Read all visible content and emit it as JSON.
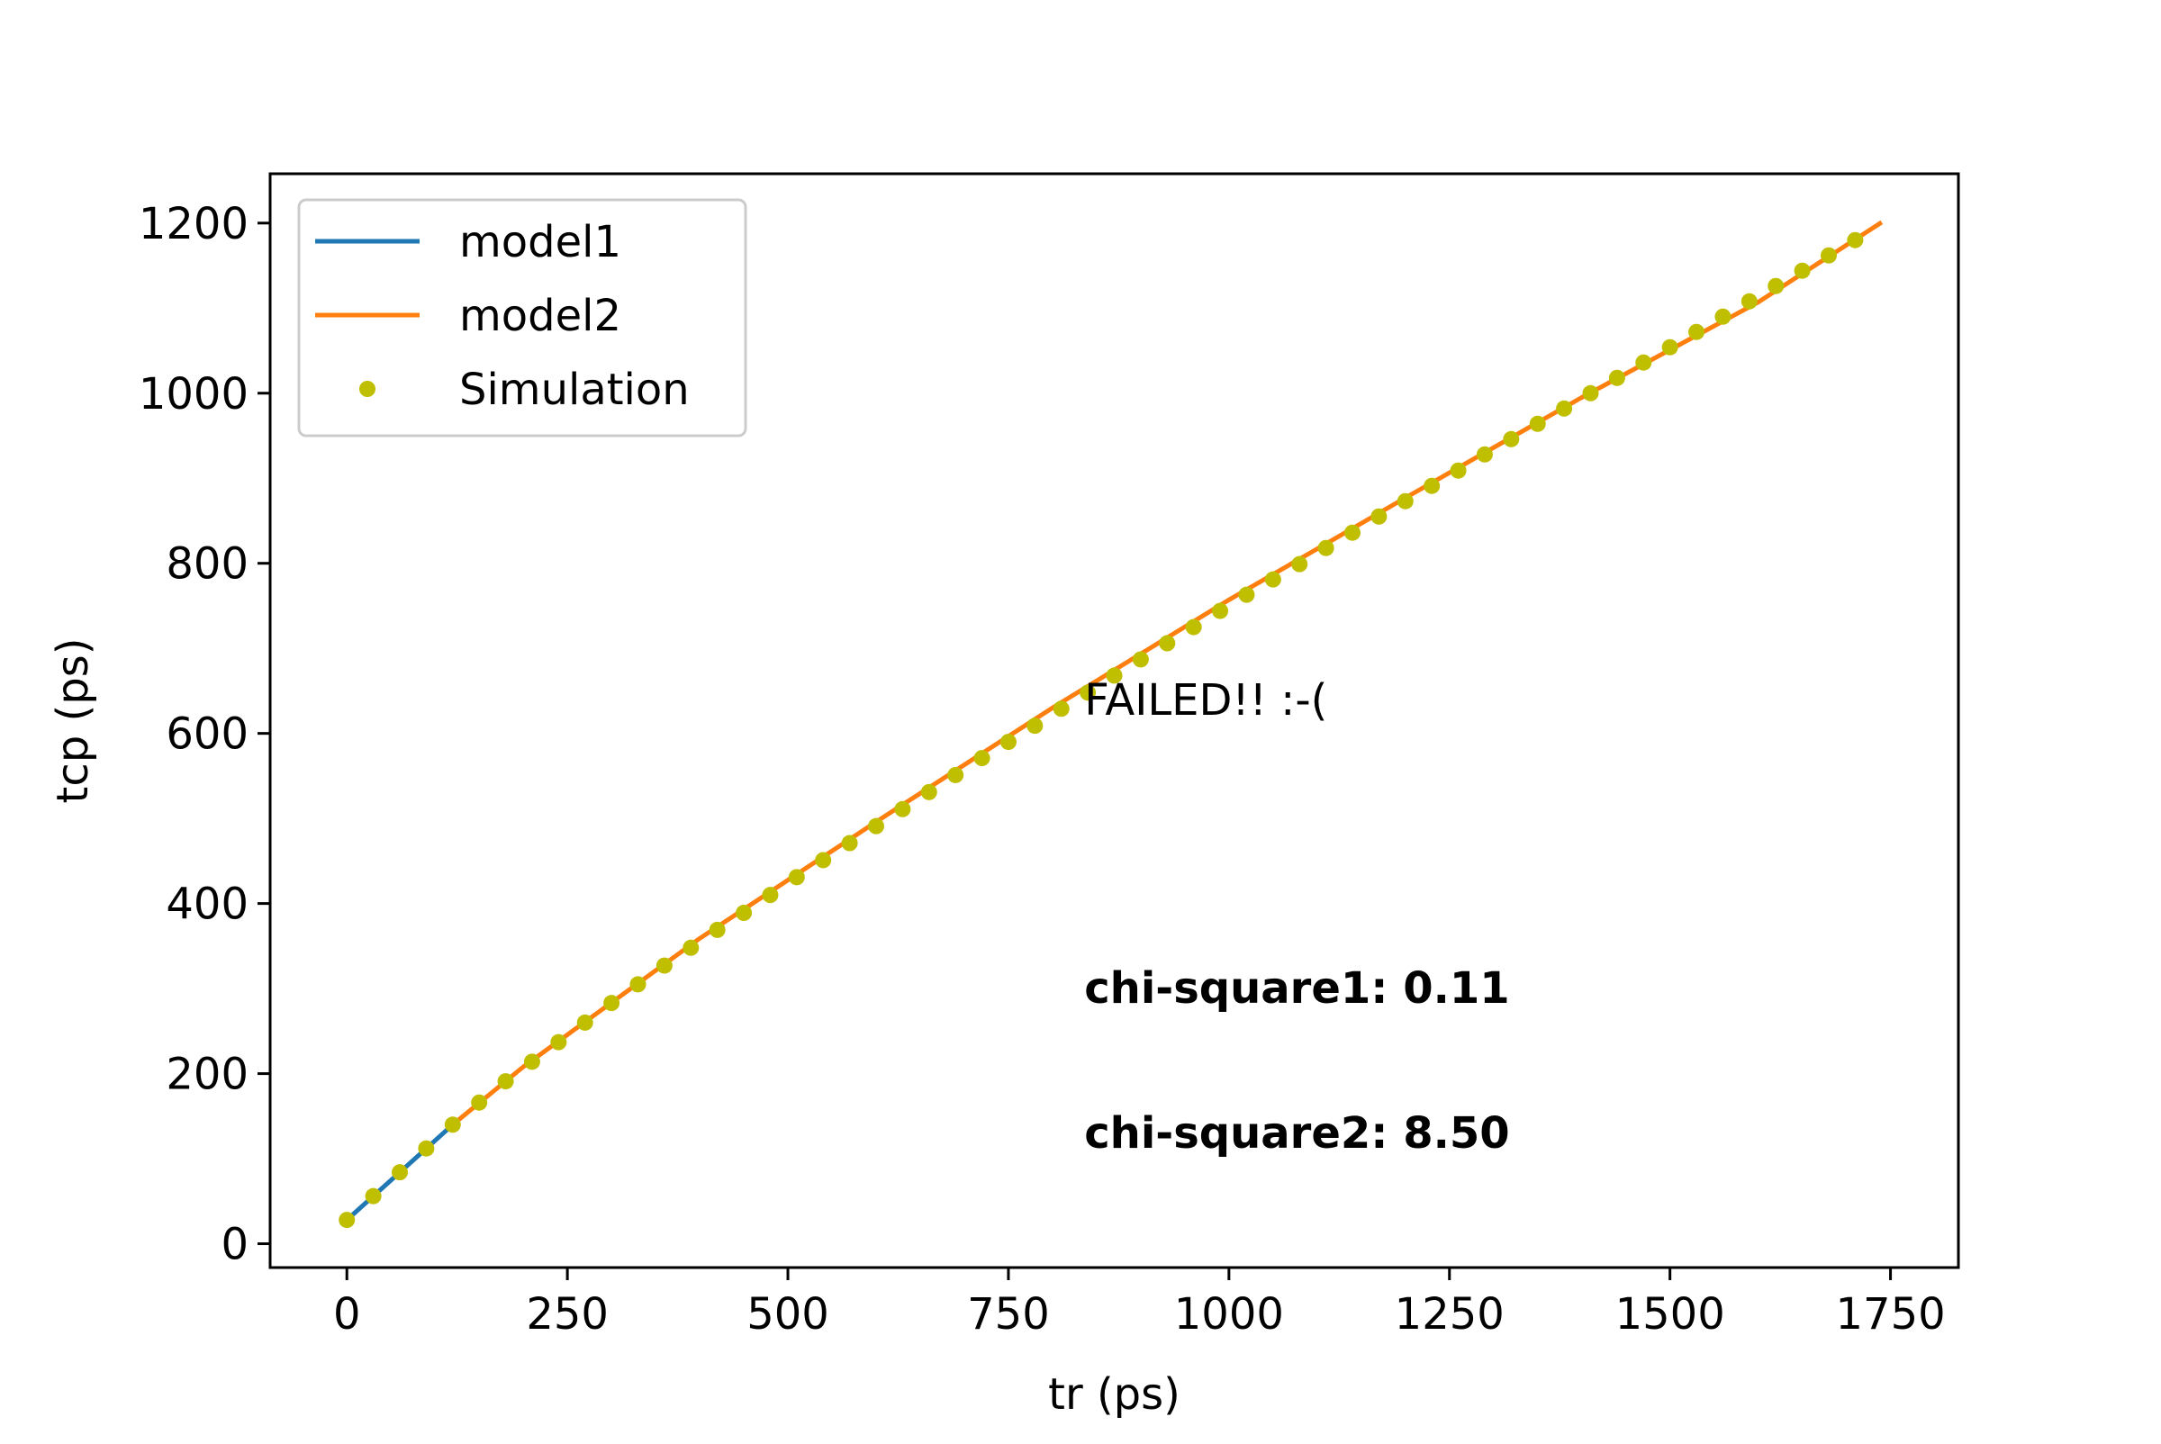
{
  "chart_data": {
    "type": "line",
    "xlabel": "tr (ps)",
    "ylabel": "tcp (ps)",
    "xlim": [
      -87,
      1827
    ],
    "ylim": [
      -28,
      1258
    ],
    "xticks": [
      0,
      250,
      500,
      750,
      1000,
      1250,
      1500,
      1750
    ],
    "yticks": [
      0,
      200,
      400,
      600,
      800,
      1000,
      1200
    ],
    "grid": false,
    "legend_position": "top-left",
    "legend": [
      "model1",
      "model2",
      "Simulation"
    ],
    "series": [
      {
        "name": "model1",
        "style": "line",
        "color": "#1f77b4",
        "x": [
          0,
          120
        ],
        "y": [
          28,
          140
        ]
      },
      {
        "name": "model2",
        "style": "line",
        "color": "#ff7f0e",
        "x": [
          120,
          200,
          400,
          600,
          800,
          1000,
          1200,
          1400,
          1600,
          1740
        ],
        "y": [
          140,
          208,
          359,
          496,
          630,
          757,
          877,
          995,
          1107,
          1201
        ]
      },
      {
        "name": "Simulation",
        "style": "markers",
        "color": "#bfbf00",
        "x": [
          0,
          30,
          60,
          90,
          120,
          150,
          180,
          210,
          240,
          270,
          300,
          330,
          360,
          390,
          420,
          450,
          480,
          510,
          540,
          570,
          600,
          630,
          660,
          690,
          720,
          750,
          780,
          810,
          840,
          870,
          900,
          930,
          960,
          990,
          1020,
          1050,
          1080,
          1110,
          1140,
          1170,
          1200,
          1230,
          1260,
          1290,
          1320,
          1350,
          1380,
          1410,
          1440,
          1470,
          1500,
          1530,
          1560,
          1590,
          1620,
          1650,
          1680,
          1710
        ],
        "y": [
          28,
          56,
          84,
          112,
          140,
          166,
          191,
          214,
          237,
          260,
          283,
          305,
          327,
          348,
          369,
          389,
          410,
          431,
          451,
          471,
          491,
          511,
          531,
          551,
          571,
          590,
          609,
          629,
          648,
          668,
          687,
          706,
          725,
          744,
          763,
          781,
          799,
          818,
          836,
          855,
          873,
          891,
          909,
          928,
          946,
          964,
          982,
          1000,
          1018,
          1036,
          1054,
          1072,
          1090,
          1108,
          1126,
          1144,
          1162,
          1180
        ]
      }
    ],
    "annotations": [
      {
        "text": "FAILED!! :-(",
        "x": 836,
        "y": 622,
        "bold": false
      },
      {
        "text": "chi-square1: 0.11",
        "x": 836,
        "y": 283,
        "bold": true
      },
      {
        "text": "chi-square2: 8.50",
        "x": 836,
        "y": 113,
        "bold": true
      }
    ]
  }
}
